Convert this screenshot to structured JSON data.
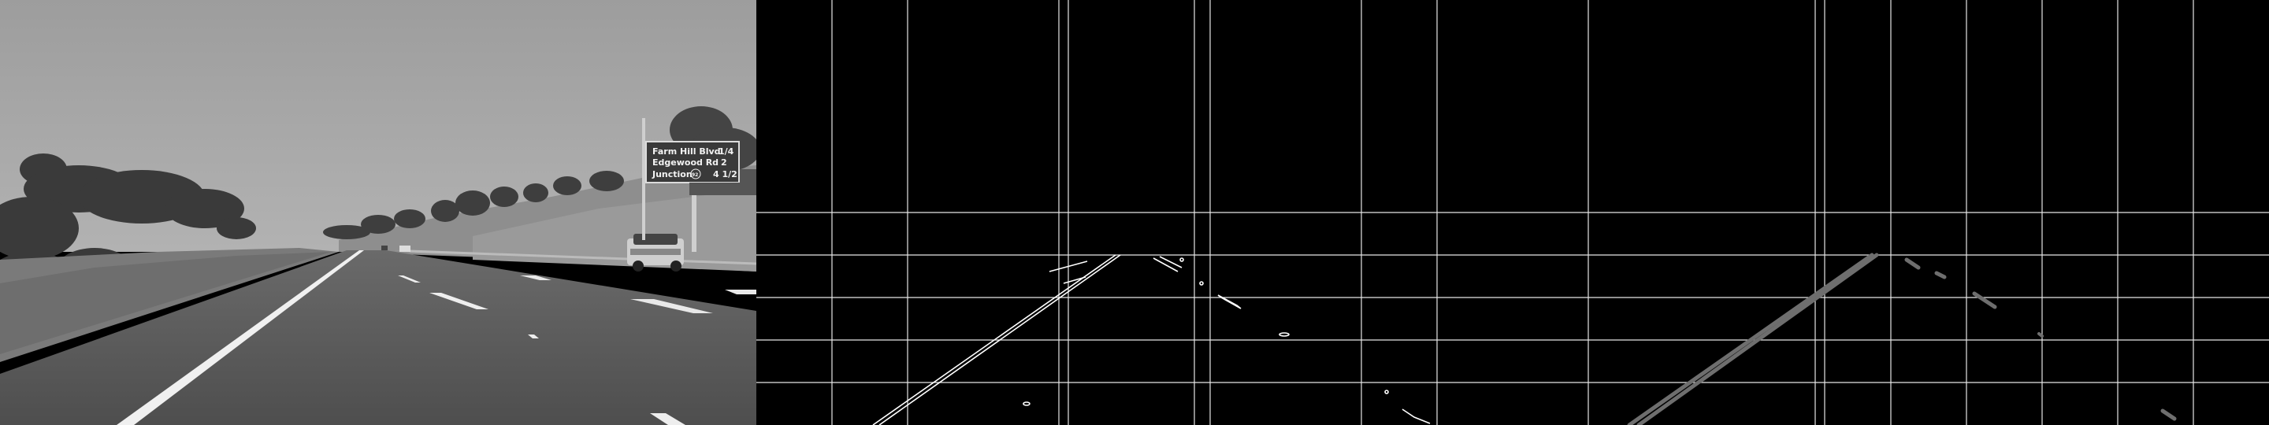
{
  "panels": [
    {
      "name": "grayscale-road-frame"
    },
    {
      "name": "canny-edge-map-with-grid"
    },
    {
      "name": "detected-lane-lines-with-grid"
    }
  ],
  "sign": {
    "row1_name": "Farm Hill Blvd",
    "row1_dist": "1/4",
    "row2_name": "Edgewood Rd",
    "row2_dist": "2",
    "row3_name": "Junction",
    "row3_route": "92",
    "row3_dist": "4 1/2"
  },
  "colors": {
    "sky": "#a6a6a6",
    "road": "#5a5a5a",
    "edge_line": "#ffffff",
    "grid_line": "#e6e6e6",
    "lane_overlay": "#6e6e6e"
  }
}
